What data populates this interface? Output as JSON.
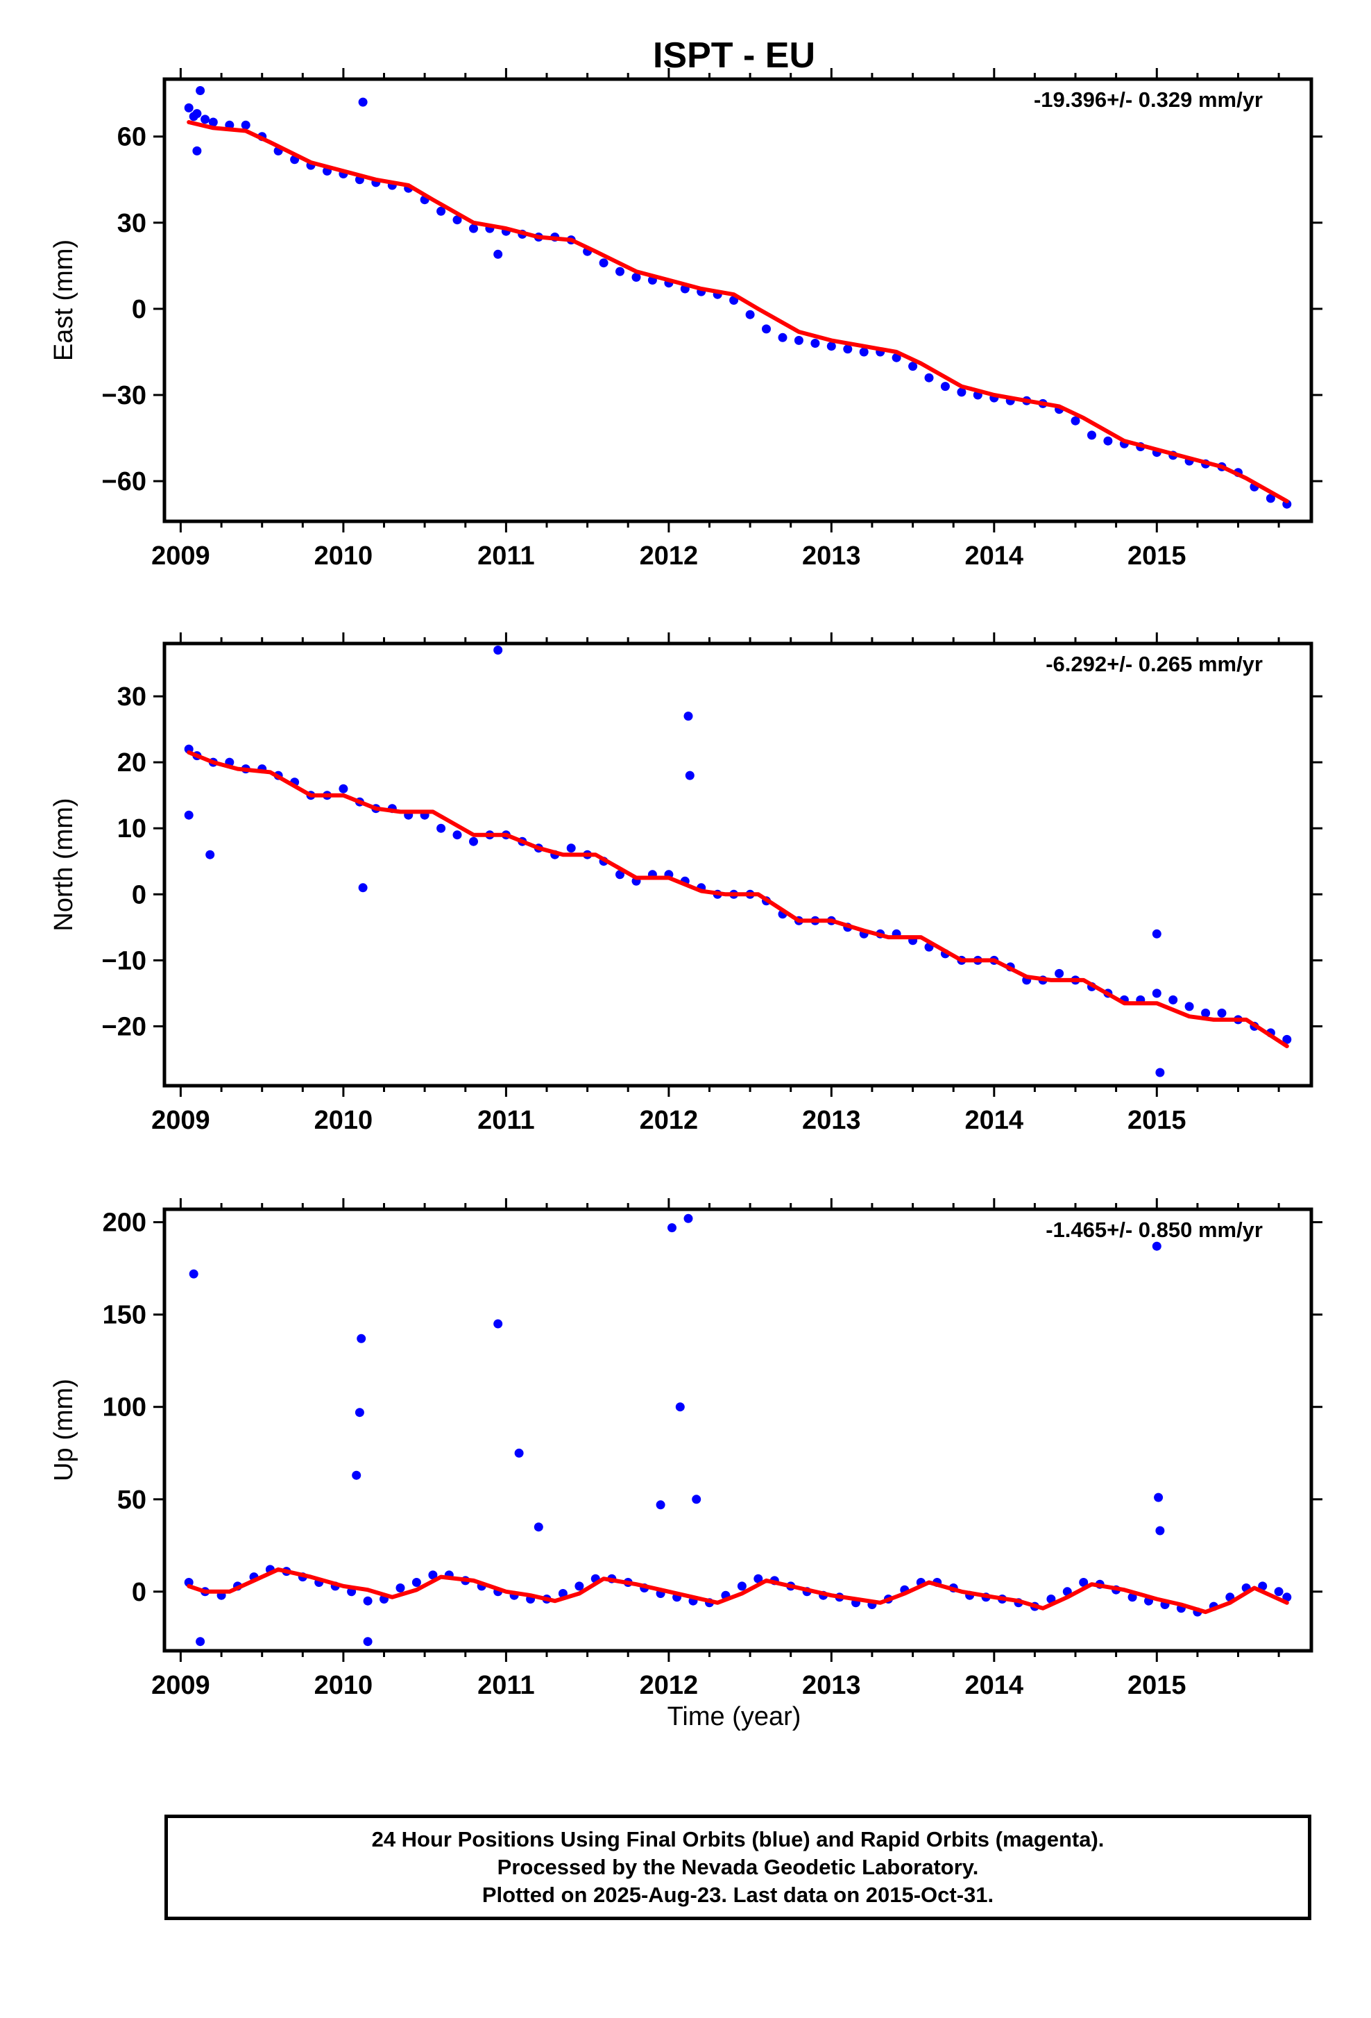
{
  "title": "ISPT - EU",
  "x_label": "Time (year)",
  "colors": {
    "final_orbits": "#0000ff",
    "model_fit": "#ff0000",
    "frame": "#000000"
  },
  "footer": {
    "line1": "24 Hour Positions Using Final Orbits (blue) and Rapid Orbits (magenta).",
    "line2": "Processed by the Nevada Geodetic Laboratory.",
    "line3": "Plotted on 2025-Aug-23. Last data on 2015-Oct-31."
  },
  "chart_data": [
    {
      "type": "scatter",
      "panel": "east",
      "ylabel": "East (mm)",
      "xlabel": "",
      "rate_label": "-19.396+/- 0.329 mm/yr",
      "xlim": [
        2008.9,
        2015.95
      ],
      "ylim": [
        -74,
        80
      ],
      "x_ticks": [
        2009,
        2010,
        2011,
        2012,
        2013,
        2014,
        2015
      ],
      "x_tick_labels": [
        "2009",
        "2010",
        "2011",
        "2012",
        "2013",
        "2014",
        "2015"
      ],
      "y_ticks": [
        60,
        30,
        0,
        -30,
        -60
      ],
      "y_tick_labels": [
        "60",
        "30",
        "0",
        "−30",
        "−60"
      ],
      "series": [
        {
          "role": "daily positions (final orbits)",
          "color": "#0000ff",
          "x": [
            2009.05,
            2009.08,
            2009.1,
            2009.15,
            2009.2,
            2009.3,
            2009.4,
            2009.5,
            2009.6,
            2009.7,
            2009.8,
            2009.9,
            2010.0,
            2010.1,
            2010.2,
            2010.3,
            2010.4,
            2010.5,
            2010.6,
            2010.7,
            2010.8,
            2010.9,
            2011.0,
            2011.1,
            2011.2,
            2011.3,
            2011.4,
            2011.5,
            2011.6,
            2011.7,
            2011.8,
            2011.9,
            2012.0,
            2012.1,
            2012.2,
            2012.3,
            2012.4,
            2012.5,
            2012.6,
            2012.7,
            2012.8,
            2012.9,
            2013.0,
            2013.1,
            2013.2,
            2013.3,
            2013.4,
            2013.5,
            2013.6,
            2013.7,
            2013.8,
            2013.9,
            2014.0,
            2014.1,
            2014.2,
            2014.3,
            2014.4,
            2014.5,
            2014.6,
            2014.7,
            2014.8,
            2014.9,
            2015.0,
            2015.1,
            2015.2,
            2015.3,
            2015.4,
            2015.5,
            2015.6,
            2015.7,
            2015.8,
            2009.1,
            2009.12,
            2010.12,
            2010.95
          ],
          "y": [
            70,
            67,
            68,
            66,
            65,
            64,
            64,
            60,
            55,
            52,
            50,
            48,
            47,
            45,
            44,
            43,
            42,
            38,
            34,
            31,
            28,
            28,
            27,
            26,
            25,
            25,
            24,
            20,
            16,
            13,
            11,
            10,
            9,
            7,
            6,
            5,
            3,
            -2,
            -7,
            -10,
            -11,
            -12,
            -13,
            -14,
            -15,
            -15,
            -17,
            -20,
            -24,
            -27,
            -29,
            -30,
            -31,
            -32,
            -32,
            -33,
            -35,
            -39,
            -44,
            -46,
            -47,
            -48,
            -50,
            -51,
            -53,
            -54,
            -55,
            -57,
            -62,
            -66,
            -68,
            55,
            76,
            72,
            19
          ]
        },
        {
          "role": "model fit",
          "color": "#ff0000",
          "x": [
            2009.05,
            2009.2,
            2009.4,
            2009.55,
            2009.8,
            2010.0,
            2010.2,
            2010.4,
            2010.55,
            2010.8,
            2011.0,
            2011.2,
            2011.4,
            2011.55,
            2011.8,
            2012.0,
            2012.2,
            2012.4,
            2012.55,
            2012.8,
            2013.0,
            2013.2,
            2013.4,
            2013.55,
            2013.8,
            2014.0,
            2014.2,
            2014.4,
            2014.55,
            2014.8,
            2015.0,
            2015.2,
            2015.4,
            2015.55,
            2015.8
          ],
          "y": [
            65,
            63,
            62,
            58,
            51,
            48,
            45,
            43,
            38,
            30,
            28,
            25,
            24,
            20,
            13,
            10,
            7,
            5,
            0,
            -8,
            -11,
            -13,
            -15,
            -19,
            -27,
            -30,
            -32,
            -34,
            -38,
            -46,
            -49,
            -52,
            -55,
            -59,
            -67
          ]
        }
      ]
    },
    {
      "type": "scatter",
      "panel": "north",
      "ylabel": "North (mm)",
      "xlabel": "",
      "rate_label": "-6.292+/- 0.265 mm/yr",
      "xlim": [
        2008.9,
        2015.95
      ],
      "ylim": [
        -29,
        38
      ],
      "x_ticks": [
        2009,
        2010,
        2011,
        2012,
        2013,
        2014,
        2015
      ],
      "x_tick_labels": [
        "2009",
        "2010",
        "2011",
        "2012",
        "2013",
        "2014",
        "2015"
      ],
      "y_ticks": [
        30,
        20,
        10,
        0,
        -10,
        -20
      ],
      "y_tick_labels": [
        "30",
        "20",
        "10",
        "0",
        "−10",
        "−20"
      ],
      "series": [
        {
          "role": "daily positions (final orbits)",
          "color": "#0000ff",
          "x": [
            2009.05,
            2009.1,
            2009.2,
            2009.3,
            2009.4,
            2009.5,
            2009.6,
            2009.7,
            2009.8,
            2009.9,
            2010.0,
            2010.1,
            2010.2,
            2010.3,
            2010.4,
            2010.5,
            2010.6,
            2010.7,
            2010.8,
            2010.9,
            2011.0,
            2011.1,
            2011.2,
            2011.3,
            2011.4,
            2011.5,
            2011.6,
            2011.7,
            2011.8,
            2011.9,
            2012.0,
            2012.1,
            2012.2,
            2012.3,
            2012.4,
            2012.5,
            2012.6,
            2012.7,
            2012.8,
            2012.9,
            2013.0,
            2013.1,
            2013.2,
            2013.3,
            2013.4,
            2013.5,
            2013.6,
            2013.7,
            2013.8,
            2013.9,
            2014.0,
            2014.1,
            2014.2,
            2014.3,
            2014.4,
            2014.5,
            2014.6,
            2014.7,
            2014.8,
            2014.9,
            2015.0,
            2015.1,
            2015.2,
            2015.3,
            2015.4,
            2015.5,
            2015.6,
            2015.7,
            2015.8,
            2009.05,
            2009.18,
            2010.12,
            2010.95,
            2012.12,
            2012.13,
            2015.0,
            2015.02
          ],
          "y": [
            22,
            21,
            20,
            20,
            19,
            19,
            18,
            17,
            15,
            15,
            16,
            14,
            13,
            13,
            12,
            12,
            10,
            9,
            8,
            9,
            9,
            8,
            7,
            6,
            7,
            6,
            5,
            3,
            2,
            3,
            3,
            2,
            1,
            0,
            0,
            0,
            -1,
            -3,
            -4,
            -4,
            -4,
            -5,
            -6,
            -6,
            -6,
            -7,
            -8,
            -9,
            -10,
            -10,
            -10,
            -11,
            -13,
            -13,
            -12,
            -13,
            -14,
            -15,
            -16,
            -16,
            -15,
            -16,
            -17,
            -18,
            -18,
            -19,
            -20,
            -21,
            -22,
            12,
            6,
            1,
            37,
            27,
            18,
            -6,
            -27
          ]
        },
        {
          "role": "model fit",
          "color": "#ff0000",
          "x": [
            2009.05,
            2009.2,
            2009.35,
            2009.55,
            2009.8,
            2010.0,
            2010.2,
            2010.35,
            2010.55,
            2010.8,
            2011.0,
            2011.2,
            2011.35,
            2011.55,
            2011.8,
            2012.0,
            2012.2,
            2012.35,
            2012.55,
            2012.8,
            2013.0,
            2013.2,
            2013.35,
            2013.55,
            2013.8,
            2014.0,
            2014.2,
            2014.35,
            2014.55,
            2014.8,
            2015.0,
            2015.2,
            2015.35,
            2015.55,
            2015.8
          ],
          "y": [
            21.5,
            20,
            19,
            18.5,
            15,
            15,
            13,
            12.5,
            12.5,
            9,
            9,
            7,
            6,
            6,
            2.5,
            2.5,
            0.5,
            0,
            0,
            -4,
            -4,
            -5.5,
            -6.5,
            -6.5,
            -10,
            -10,
            -12.5,
            -13,
            -13,
            -16.5,
            -16.5,
            -18.5,
            -19,
            -19,
            -23
          ]
        }
      ]
    },
    {
      "type": "scatter",
      "panel": "up",
      "ylabel": "Up (mm)",
      "xlabel": "Time (year)",
      "rate_label": "-1.465+/- 0.850 mm/yr",
      "xlim": [
        2008.9,
        2015.95
      ],
      "ylim": [
        -32,
        207
      ],
      "x_ticks": [
        2009,
        2010,
        2011,
        2012,
        2013,
        2014,
        2015
      ],
      "x_tick_labels": [
        "2009",
        "2010",
        "2011",
        "2012",
        "2013",
        "2014",
        "2015"
      ],
      "y_ticks": [
        200,
        150,
        100,
        50,
        0
      ],
      "y_tick_labels": [
        "200",
        "150",
        "100",
        "50",
        "0"
      ],
      "series": [
        {
          "role": "daily positions (final orbits)",
          "color": "#0000ff",
          "x": [
            2009.05,
            2009.15,
            2009.25,
            2009.35,
            2009.45,
            2009.55,
            2009.65,
            2009.75,
            2009.85,
            2009.95,
            2010.05,
            2010.15,
            2010.25,
            2010.35,
            2010.45,
            2010.55,
            2010.65,
            2010.75,
            2010.85,
            2010.95,
            2011.05,
            2011.15,
            2011.25,
            2011.35,
            2011.45,
            2011.55,
            2011.65,
            2011.75,
            2011.85,
            2011.95,
            2012.05,
            2012.15,
            2012.25,
            2012.35,
            2012.45,
            2012.55,
            2012.65,
            2012.75,
            2012.85,
            2012.95,
            2013.05,
            2013.15,
            2013.25,
            2013.35,
            2013.45,
            2013.55,
            2013.65,
            2013.75,
            2013.85,
            2013.95,
            2014.05,
            2014.15,
            2014.25,
            2014.35,
            2014.45,
            2014.55,
            2014.65,
            2014.75,
            2014.85,
            2014.95,
            2015.05,
            2015.15,
            2015.25,
            2015.35,
            2015.45,
            2015.55,
            2015.65,
            2015.75,
            2015.8,
            2009.08,
            2009.12,
            2010.08,
            2010.1,
            2010.11,
            2010.15,
            2010.95,
            2011.08,
            2011.2,
            2011.95,
            2012.02,
            2012.07,
            2012.12,
            2012.17,
            2015.0,
            2015.01,
            2015.02
          ],
          "y": [
            5,
            0,
            -2,
            3,
            8,
            12,
            11,
            8,
            5,
            3,
            0,
            -5,
            -4,
            2,
            5,
            9,
            9,
            6,
            3,
            0,
            -2,
            -4,
            -4,
            -1,
            3,
            7,
            7,
            5,
            2,
            -1,
            -3,
            -5,
            -6,
            -2,
            3,
            7,
            6,
            3,
            0,
            -2,
            -3,
            -6,
            -7,
            -4,
            1,
            5,
            5,
            2,
            -2,
            -3,
            -4,
            -6,
            -8,
            -4,
            0,
            5,
            4,
            1,
            -3,
            -5,
            -7,
            -9,
            -11,
            -8,
            -3,
            2,
            3,
            0,
            -3,
            172,
            -27,
            63,
            97,
            137,
            -27,
            145,
            75,
            35,
            47,
            197,
            100,
            202,
            50,
            187,
            51,
            33
          ]
        },
        {
          "role": "model fit",
          "color": "#ff0000",
          "x": [
            2009.05,
            2009.15,
            2009.3,
            2009.45,
            2009.6,
            2009.8,
            2010.0,
            2010.15,
            2010.3,
            2010.45,
            2010.6,
            2010.8,
            2011.0,
            2011.15,
            2011.3,
            2011.45,
            2011.6,
            2011.8,
            2012.0,
            2012.15,
            2012.3,
            2012.45,
            2012.6,
            2012.8,
            2013.0,
            2013.15,
            2013.3,
            2013.45,
            2013.6,
            2013.8,
            2014.0,
            2014.15,
            2014.3,
            2014.45,
            2014.6,
            2014.8,
            2015.0,
            2015.15,
            2015.3,
            2015.45,
            2015.6,
            2015.8
          ],
          "y": [
            3,
            0,
            0,
            6,
            12,
            8,
            3,
            1,
            -3,
            1,
            8,
            6,
            0,
            -2,
            -5,
            -1,
            7,
            4,
            0,
            -3,
            -6,
            -1,
            6,
            2,
            -2,
            -4,
            -6,
            -1,
            5,
            0,
            -3,
            -5,
            -9,
            -3,
            4,
            1,
            -4,
            -7,
            -11,
            -6,
            2,
            -6
          ]
        }
      ]
    }
  ]
}
